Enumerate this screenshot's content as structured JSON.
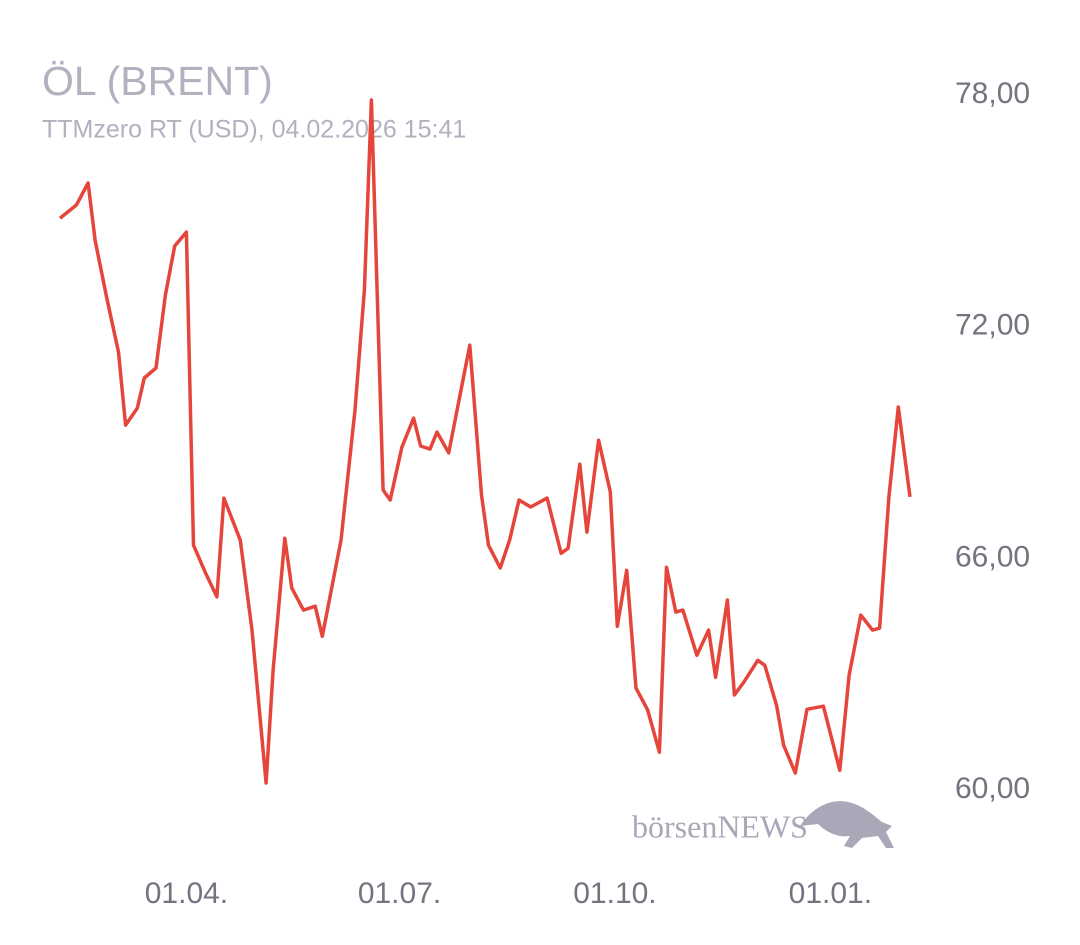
{
  "chart_data": {
    "type": "line",
    "title": "ÖL (BRENT)",
    "subtitle": "TTMzero RT (USD), 04.02.2026 15:41",
    "watermark": "börsenNEWS",
    "x": [
      -54,
      -47,
      -42,
      -39,
      -34,
      -29,
      -26,
      -21,
      -18,
      -13,
      -9,
      -5,
      0,
      3,
      8,
      13,
      16,
      23,
      28,
      34,
      37,
      42,
      45,
      50,
      55,
      58,
      66,
      72,
      76,
      79,
      84,
      87,
      92,
      97,
      100,
      104,
      107,
      112,
      121,
      126,
      129,
      134,
      138,
      142,
      147,
      154,
      160,
      163,
      168,
      171,
      176,
      181,
      184,
      188,
      192,
      197,
      202,
      205,
      209,
      212,
      218,
      223,
      226,
      231,
      234,
      238,
      244,
      247,
      252,
      255,
      260,
      265,
      272,
      279,
      283,
      288,
      293,
      296,
      300,
      304,
      309
    ],
    "series": [
      {
        "name": "ÖL (BRENT)",
        "color": "#e5453b",
        "values": [
          74.81,
          75.15,
          75.72,
          74.24,
          72.74,
          71.34,
          69.45,
          69.89,
          70.67,
          70.93,
          72.82,
          74.09,
          74.45,
          66.34,
          65.64,
          65.0,
          67.56,
          66.47,
          64.14,
          60.18,
          63.1,
          66.52,
          65.23,
          64.66,
          64.76,
          63.98,
          66.47,
          69.84,
          72.95,
          77.87,
          67.77,
          67.51,
          68.88,
          69.63,
          68.91,
          68.83,
          69.27,
          68.73,
          71.52,
          67.64,
          66.34,
          65.75,
          66.47,
          67.51,
          67.33,
          67.56,
          66.13,
          66.26,
          68.44,
          66.68,
          69.06,
          67.72,
          64.24,
          65.69,
          62.64,
          62.07,
          60.98,
          65.77,
          64.61,
          64.66,
          63.49,
          64.14,
          62.92,
          64.92,
          62.46,
          62.79,
          63.36,
          63.23,
          62.2,
          61.16,
          60.44,
          62.09,
          62.17,
          60.51,
          62.97,
          64.53,
          64.14,
          64.19,
          67.59,
          69.92,
          67.59
        ]
      }
    ],
    "xlim": [
      -54,
      309
    ],
    "xticks": [
      {
        "value": 0,
        "label": "01.04."
      },
      {
        "value": 91,
        "label": "01.07."
      },
      {
        "value": 183,
        "label": "01.10."
      },
      {
        "value": 275,
        "label": "01.01."
      }
    ],
    "ylim": [
      60,
      78
    ],
    "yticks": [
      {
        "value": 60,
        "label": "60,00"
      },
      {
        "value": 66,
        "label": "66,00"
      },
      {
        "value": 72,
        "label": "72,00"
      },
      {
        "value": 78,
        "label": "78,00"
      }
    ],
    "grid": false
  }
}
